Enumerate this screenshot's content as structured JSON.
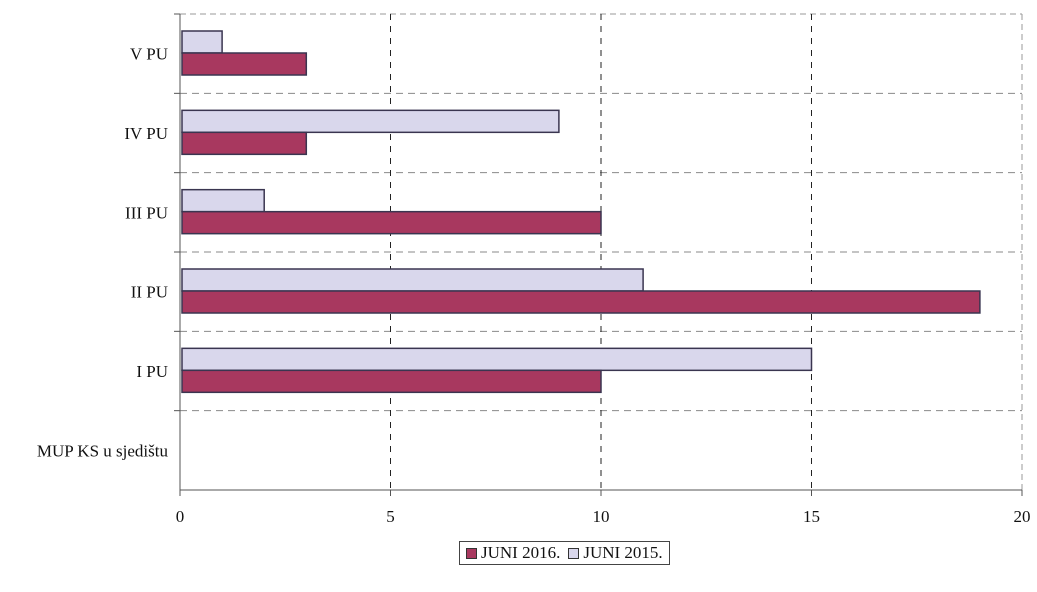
{
  "chart_data": {
    "type": "bar",
    "orientation": "horizontal",
    "categories": [
      "V PU",
      "IV PU",
      "III PU",
      "II PU",
      "I PU",
      "MUP KS u sjedištu"
    ],
    "series": [
      {
        "name": "JUNI 2016.",
        "values": [
          3,
          3,
          10,
          19,
          10,
          0
        ],
        "color": "#a8385f"
      },
      {
        "name": "JUNI 2015.",
        "values": [
          1,
          9,
          2,
          11,
          15,
          0
        ],
        "color": "#d9d7ec"
      }
    ],
    "x_ticks": [
      "0",
      "5",
      "10",
      "15",
      "20"
    ],
    "xlim": [
      0,
      20
    ],
    "grid": true,
    "legend_position": "bottom"
  }
}
